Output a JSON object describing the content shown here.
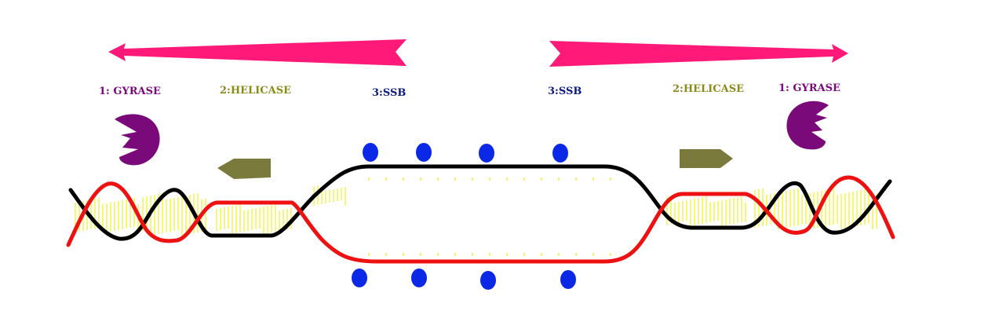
{
  "labels": {
    "gyrase_left": "1: GYRASE",
    "helicase_left": "2:HELICASE",
    "ssb_left": "3:SSB",
    "ssb_right": "3:SSB",
    "helicase_right": "2:HELICASE",
    "gyrase_right": "1: GYRASE"
  },
  "colors": {
    "arrow": "#ff1a7a",
    "gyrase": "#7a0a7a",
    "helicase": "#7a7a3c",
    "helicase_text": "#8a8a1a",
    "ssb": "#0a28e6",
    "ssb_text": "#0a1a80",
    "strand_black": "#000000",
    "strand_red": "#ee1111",
    "base_pairs": "#f0f030"
  },
  "icons": {
    "gyrase": "pacman-shape",
    "helicase": "arrow-pentagon-shape",
    "ssb": "blue-dot",
    "direction": "tapered-arrow"
  }
}
